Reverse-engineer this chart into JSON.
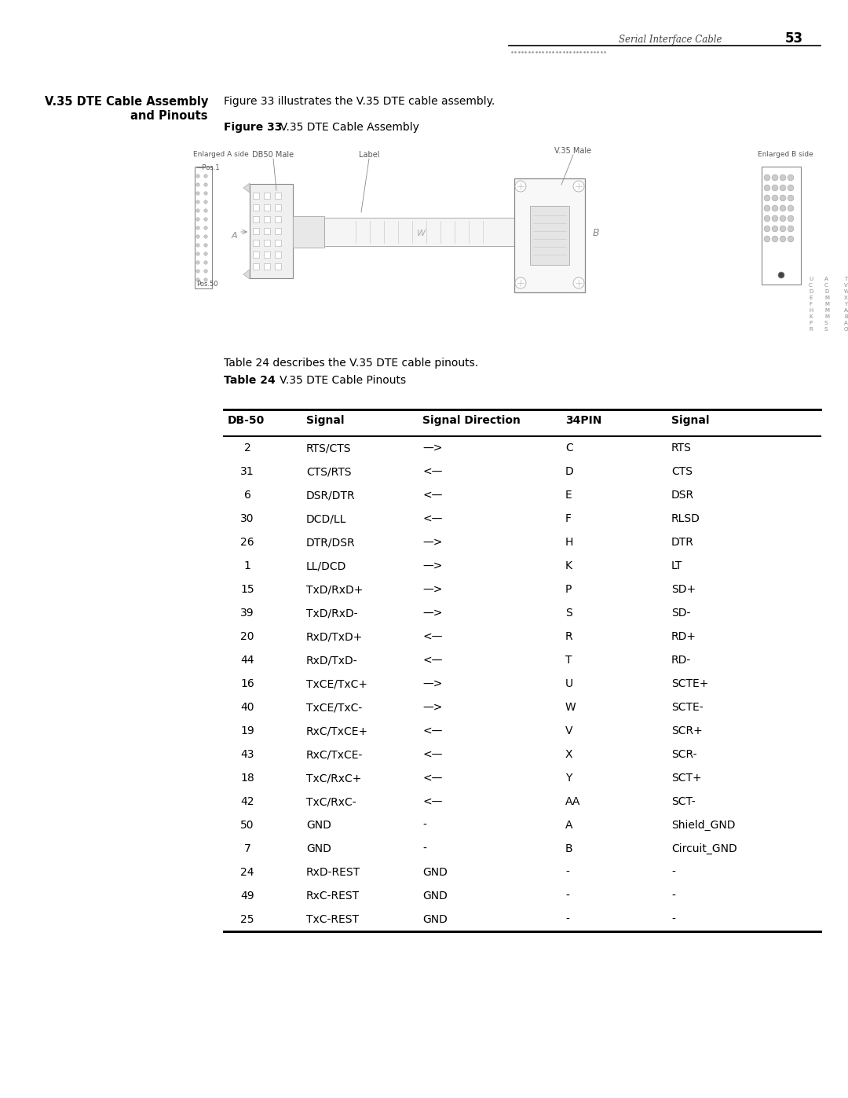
{
  "page_header_italic": "Serial Interface Cable",
  "page_number": "53",
  "section_title_line1": "V.35 DTE Cable Assembly",
  "section_title_line2": "and Pinouts",
  "intro_text": "Figure 33 illustrates the V.35 DTE cable assembly.",
  "figure_label_bold": "Figure 33",
  "figure_label_rest": "  V.35 DTE Cable Assembly",
  "table_intro": "Table 24 describes the V.35 DTE cable pinouts.",
  "table_label_bold": "Table 24",
  "table_label_rest": "   V.35 DTE Cable Pinouts",
  "table_headers": [
    "DB-50",
    "Signal",
    "Signal Direction",
    "34PIN",
    "Signal"
  ],
  "table_rows": [
    [
      "2",
      "RTS/CTS",
      "—>",
      "C",
      "RTS"
    ],
    [
      "31",
      "CTS/RTS",
      "<—",
      "D",
      "CTS"
    ],
    [
      "6",
      "DSR/DTR",
      "<—",
      "E",
      "DSR"
    ],
    [
      "30",
      "DCD/LL",
      "<—",
      "F",
      "RLSD"
    ],
    [
      "26",
      "DTR/DSR",
      "—>",
      "H",
      "DTR"
    ],
    [
      "1",
      "LL/DCD",
      "—>",
      "K",
      "LT"
    ],
    [
      "15",
      "TxD/RxD+",
      "—>",
      "P",
      "SD+"
    ],
    [
      "39",
      "TxD/RxD-",
      "—>",
      "S",
      "SD-"
    ],
    [
      "20",
      "RxD/TxD+",
      "<—",
      "R",
      "RD+"
    ],
    [
      "44",
      "RxD/TxD-",
      "<—",
      "T",
      "RD-"
    ],
    [
      "16",
      "TxCE/TxC+",
      "—>",
      "U",
      "SCTE+"
    ],
    [
      "40",
      "TxCE/TxC-",
      "—>",
      "W",
      "SCTE-"
    ],
    [
      "19",
      "RxC/TxCE+",
      "<—",
      "V",
      "SCR+"
    ],
    [
      "43",
      "RxC/TxCE-",
      "<—",
      "X",
      "SCR-"
    ],
    [
      "18",
      "TxC/RxC+",
      "<—",
      "Y",
      "SCT+"
    ],
    [
      "42",
      "TxC/RxC-",
      "<—",
      "AA",
      "SCT-"
    ],
    [
      "50",
      "GND",
      "-",
      "A",
      "Shield_GND"
    ],
    [
      "7",
      "GND",
      "-",
      "B",
      "Circuit_GND"
    ],
    [
      "24",
      "RxD-REST",
      "GND",
      "-",
      "-"
    ],
    [
      "49",
      "RxC-REST",
      "GND",
      "-",
      "-"
    ],
    [
      "25",
      "TxC-REST",
      "GND",
      "-",
      "-"
    ]
  ],
  "bg_color": "#ffffff",
  "text_color": "#000000"
}
